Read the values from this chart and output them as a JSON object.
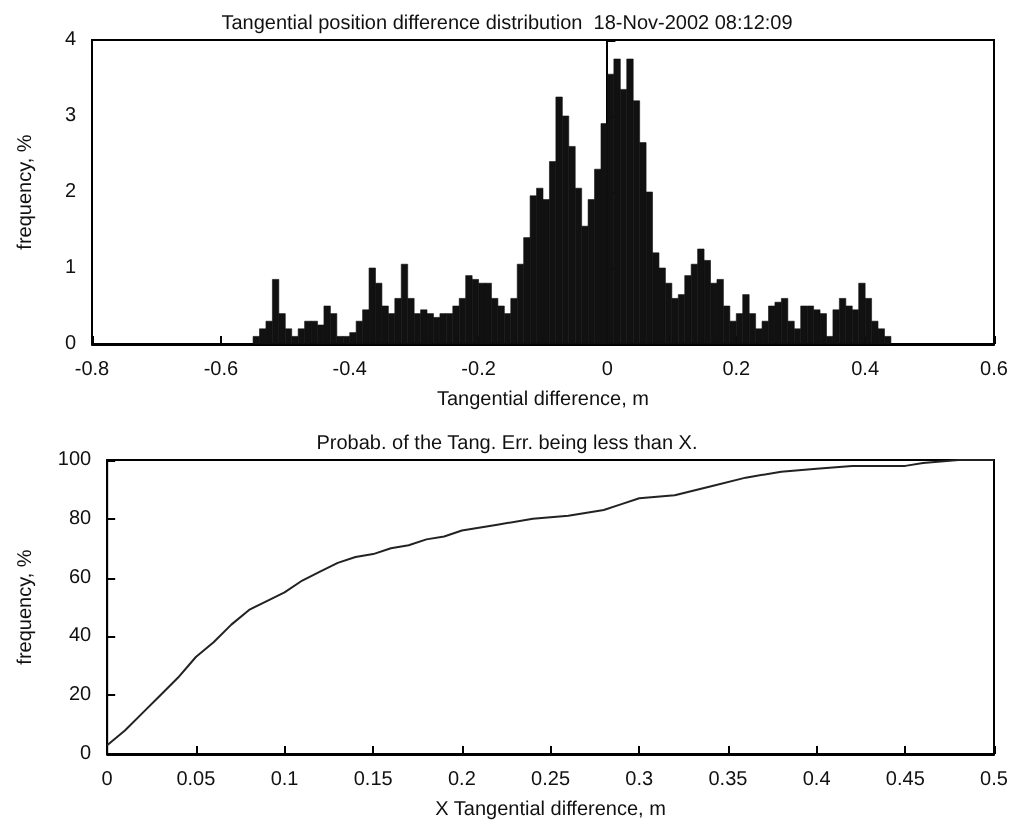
{
  "chart_data": [
    {
      "type": "histogram",
      "title": "Tangential position difference distribution  18-Nov-2002 08:12:09",
      "xlabel": "Tangential difference, m",
      "ylabel": "frequency, %",
      "color": "#111111",
      "bins": [
        -0.55,
        -0.54,
        -0.53,
        -0.52,
        -0.51,
        -0.5,
        -0.49,
        -0.48,
        -0.47,
        -0.46,
        -0.45,
        -0.44,
        -0.43,
        -0.42,
        -0.41,
        -0.4,
        -0.39,
        -0.38,
        -0.37,
        -0.36,
        -0.35,
        -0.34,
        -0.33,
        -0.32,
        -0.31,
        -0.3,
        -0.29,
        -0.28,
        -0.27,
        -0.26,
        -0.25,
        -0.24,
        -0.23,
        -0.22,
        -0.21,
        -0.2,
        -0.19,
        -0.18,
        -0.17,
        -0.16,
        -0.15,
        -0.14,
        -0.13,
        -0.12,
        -0.11,
        -0.1,
        -0.09,
        -0.08,
        -0.07,
        -0.06,
        -0.05,
        -0.04,
        -0.03,
        -0.02,
        -0.01,
        0,
        0.01,
        0.02,
        0.03,
        0.04,
        0.05,
        0.06,
        0.07,
        0.08,
        0.09,
        0.1,
        0.11,
        0.12,
        0.13,
        0.14,
        0.15,
        0.16,
        0.17,
        0.18,
        0.19,
        0.2,
        0.21,
        0.22,
        0.23,
        0.24,
        0.25,
        0.26,
        0.27,
        0.28,
        0.29,
        0.3,
        0.31,
        0.32,
        0.33,
        0.34,
        0.35,
        0.36,
        0.37,
        0.38,
        0.39,
        0.4,
        0.41,
        0.42,
        0.43,
        0.44
      ],
      "values": [
        0.1,
        0.2,
        0.3,
        0.85,
        0.4,
        0.2,
        0.1,
        0.2,
        0.3,
        0.3,
        0.25,
        0.5,
        0.4,
        0.1,
        0.1,
        0.15,
        0.3,
        0.45,
        1.0,
        0.8,
        0.5,
        0.4,
        0.6,
        1.05,
        0.6,
        0.4,
        0.45,
        0.4,
        0.35,
        0.4,
        0.4,
        0.5,
        0.6,
        0.9,
        0.85,
        0.8,
        0.8,
        0.6,
        0.5,
        0.4,
        0.6,
        1.05,
        1.4,
        1.95,
        2.05,
        1.9,
        2.4,
        3.25,
        3.0,
        2.6,
        2.05,
        1.55,
        1.9,
        2.3,
        2.9,
        3.55,
        3.75,
        3.35,
        3.75,
        3.2,
        2.65,
        2.0,
        1.2,
        1.0,
        0.8,
        0.6,
        0.65,
        0.9,
        1.05,
        1.25,
        1.1,
        0.8,
        0.85,
        0.5,
        0.3,
        0.4,
        0.65,
        0.4,
        0.2,
        0.3,
        0.5,
        0.55,
        0.6,
        0.3,
        0.2,
        0.5,
        0.5,
        0.45,
        0.4,
        0.1,
        0.45,
        0.6,
        0.5,
        0.45,
        0.8,
        0.6,
        0.3,
        0.2,
        0.1
      ],
      "xlim": [
        -0.8,
        0.6
      ],
      "xticks": [
        -0.8,
        -0.6,
        -0.4,
        -0.2,
        0,
        0.2,
        0.4,
        0.6
      ],
      "ylim": [
        0,
        4
      ],
      "yticks": [
        0,
        1,
        2,
        3,
        4
      ]
    },
    {
      "type": "line",
      "title": "Probab. of the Tang. Err. being less than X.",
      "xlabel": "X Tangential difference, m",
      "ylabel": "frequency, %",
      "color": "#222222",
      "marker": "none",
      "x": [
        0,
        0.01,
        0.02,
        0.03,
        0.04,
        0.05,
        0.06,
        0.07,
        0.08,
        0.09,
        0.1,
        0.11,
        0.12,
        0.13,
        0.14,
        0.15,
        0.16,
        0.17,
        0.18,
        0.19,
        0.2,
        0.22,
        0.24,
        0.26,
        0.28,
        0.29,
        0.3,
        0.32,
        0.34,
        0.36,
        0.38,
        0.4,
        0.42,
        0.45,
        0.46,
        0.48,
        0.5
      ],
      "values": [
        3,
        8,
        14,
        20,
        26,
        33,
        38,
        44,
        49,
        52,
        55,
        59,
        62,
        65,
        67,
        68,
        70,
        71,
        73,
        74,
        76,
        78,
        80,
        81,
        83,
        85,
        87,
        88,
        91,
        94,
        96,
        97,
        98,
        98,
        99,
        100,
        100
      ],
      "xlim": [
        0,
        0.5
      ],
      "xticks": [
        0,
        0.05,
        0.1,
        0.15,
        0.2,
        0.25,
        0.3,
        0.35,
        0.4,
        0.45,
        0.5
      ],
      "ylim": [
        0,
        100
      ],
      "yticks": [
        0,
        20,
        40,
        60,
        80,
        100
      ]
    }
  ]
}
